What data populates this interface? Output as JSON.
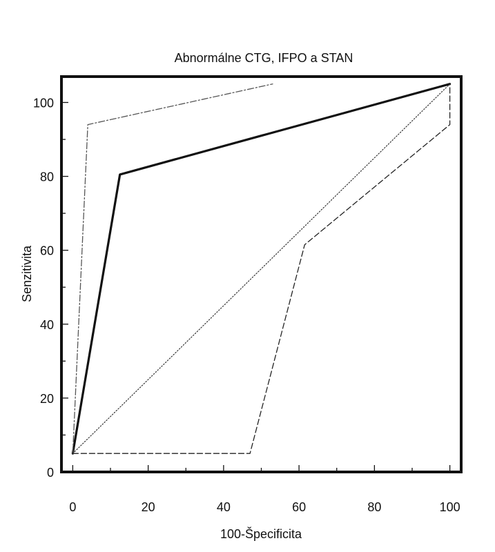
{
  "chart_data": {
    "type": "line",
    "title": "Abnormálne CTG, IFPO a STAN",
    "xlabel": "100-Špecificita",
    "ylabel": "Senzitivita",
    "xlim": [
      -3,
      103
    ],
    "ylim": [
      0,
      107
    ],
    "xticks": [
      0,
      20,
      40,
      60,
      80,
      100
    ],
    "yticks": [
      0,
      20,
      40,
      60,
      80,
      100
    ],
    "legend": "none",
    "grid": false,
    "series": [
      {
        "style": "solid-bold",
        "color": "#111111",
        "x": [
          0,
          12.5,
          100
        ],
        "y": [
          5,
          80.5,
          105
        ]
      },
      {
        "style": "dash-dot",
        "color": "#555555",
        "x": [
          0,
          4,
          53
        ],
        "y": [
          5,
          94,
          105
        ]
      },
      {
        "style": "dashed",
        "color": "#222222",
        "x": [
          0,
          47,
          61.5,
          100,
          100
        ],
        "y": [
          5,
          5,
          61.5,
          94,
          105
        ]
      },
      {
        "style": "dotted",
        "color": "#333333",
        "x": [
          0,
          100
        ],
        "y": [
          5,
          105
        ]
      }
    ]
  }
}
